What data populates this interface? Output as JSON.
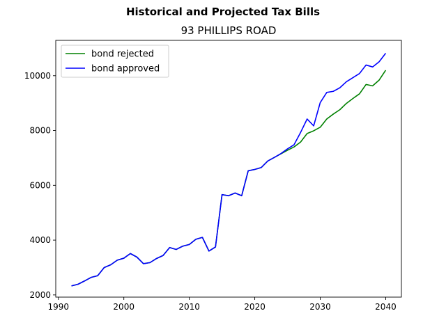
{
  "chart_data": {
    "type": "line",
    "suptitle": "Historical and Projected Tax Bills",
    "title": "93 PHILLIPS ROAD",
    "xlabel": "",
    "ylabel": "",
    "xlim": [
      1989.6,
      2042.4
    ],
    "ylim": [
      1920,
      11290
    ],
    "xticks": [
      1990,
      2000,
      2010,
      2020,
      2030,
      2040
    ],
    "yticks": [
      2000,
      4000,
      6000,
      8000,
      10000
    ],
    "grid": false,
    "legend_position": "top-left",
    "x": [
      1992,
      1993,
      1994,
      1995,
      1996,
      1997,
      1998,
      1999,
      2000,
      2001,
      2002,
      2003,
      2004,
      2005,
      2006,
      2007,
      2008,
      2009,
      2010,
      2011,
      2012,
      2013,
      2014,
      2015,
      2016,
      2017,
      2018,
      2019,
      2020,
      2021,
      2022,
      2023,
      2024,
      2025,
      2026,
      2027,
      2028,
      2029,
      2030,
      2031,
      2032,
      2033,
      2034,
      2035,
      2036,
      2037,
      2038,
      2039,
      2040
    ],
    "series": [
      {
        "name": "bond rejected",
        "color": "#008000",
        "values": [
          2330,
          2390,
          2510,
          2640,
          2700,
          3000,
          3100,
          3270,
          3340,
          3510,
          3380,
          3140,
          3180,
          3330,
          3440,
          3730,
          3660,
          3780,
          3840,
          4030,
          4100,
          3600,
          3750,
          5660,
          5620,
          5720,
          5620,
          6530,
          6580,
          6650,
          6890,
          7020,
          7150,
          7280,
          7400,
          7580,
          7890,
          7990,
          8120,
          8420,
          8600,
          8760,
          8990,
          9170,
          9340,
          9680,
          9630,
          9840,
          10200
        ]
      },
      {
        "name": "bond approved",
        "color": "#0000ff",
        "values": [
          2330,
          2390,
          2510,
          2640,
          2700,
          3000,
          3100,
          3270,
          3340,
          3510,
          3380,
          3140,
          3180,
          3330,
          3440,
          3730,
          3660,
          3780,
          3840,
          4030,
          4100,
          3600,
          3750,
          5660,
          5620,
          5720,
          5620,
          6530,
          6580,
          6650,
          6890,
          7020,
          7160,
          7330,
          7480,
          7930,
          8420,
          8170,
          9020,
          9390,
          9430,
          9560,
          9780,
          9930,
          10080,
          10390,
          10320,
          10510,
          10820
        ]
      }
    ]
  }
}
